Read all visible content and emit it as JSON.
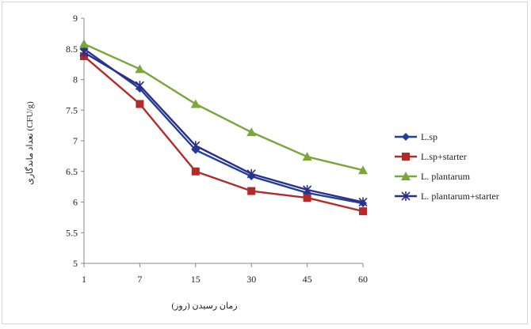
{
  "chart_data": {
    "type": "line",
    "title": "",
    "xlabel": "زمان رسیدن (روز)",
    "ylabel": "تعداد ماندگاری (CFU/g)",
    "categories": [
      "1",
      "7",
      "15",
      "30",
      "45",
      "60"
    ],
    "ylim": [
      5,
      9
    ],
    "yticks": [
      "5",
      "5.5",
      "6",
      "6.5",
      "7",
      "7.5",
      "8",
      "8.5",
      "9"
    ],
    "grid": false,
    "legend_position": "right",
    "series": [
      {
        "name": "L.sp",
        "color": "#1f3f9a",
        "marker": "diamond",
        "values": [
          8.5,
          7.85,
          6.85,
          6.42,
          6.15,
          5.98
        ]
      },
      {
        "name": "L.sp+starter",
        "color": "#b22a2a",
        "marker": "square",
        "values": [
          8.38,
          7.6,
          6.5,
          6.18,
          6.07,
          5.85
        ]
      },
      {
        "name": "L. plantarum",
        "color": "#7aa63a",
        "marker": "triangle",
        "values": [
          8.58,
          8.17,
          7.6,
          7.14,
          6.74,
          6.52
        ]
      },
      {
        "name": "L. plantarum+starter",
        "color": "#2b2f8a",
        "marker": "star",
        "values": [
          8.44,
          7.9,
          6.92,
          6.46,
          6.2,
          6.0
        ]
      }
    ]
  }
}
